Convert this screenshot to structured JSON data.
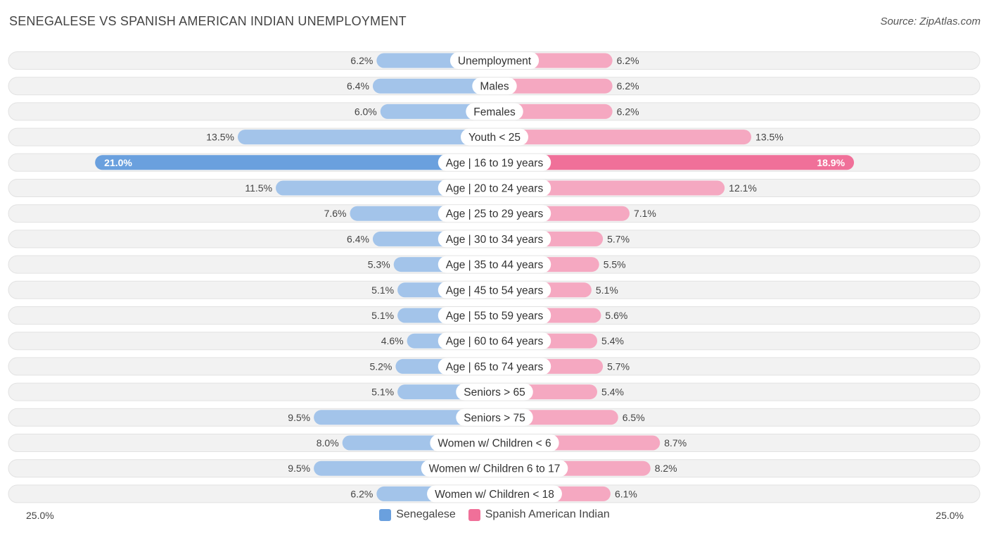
{
  "header": {
    "title": "SENEGALESE VS SPANISH AMERICAN INDIAN UNEMPLOYMENT",
    "source": "Source: ZipAtlas.com"
  },
  "colors": {
    "left_bar": "#a3c4ea",
    "left_bar_strong": "#6aa0de",
    "right_bar": "#f5a8c1",
    "right_bar_strong": "#f07099",
    "row_bg": "#f2f2f2",
    "legend_left": "#6aa0de",
    "legend_right": "#f07099"
  },
  "axis": {
    "left_label": "25.0%",
    "right_label": "25.0%"
  },
  "legend": {
    "left_label": "Senegalese",
    "right_label": "Spanish American Indian"
  },
  "chart_data": {
    "type": "bar",
    "orientation": "horizontal-diverging",
    "title": "SENEGALESE VS SPANISH AMERICAN INDIAN UNEMPLOYMENT",
    "xlim": [
      0,
      25
    ],
    "categories": [
      "Unemployment",
      "Males",
      "Females",
      "Youth < 25",
      "Age | 16 to 19 years",
      "Age | 20 to 24 years",
      "Age | 25 to 29 years",
      "Age | 30 to 34 years",
      "Age | 35 to 44 years",
      "Age | 45 to 54 years",
      "Age | 55 to 59 years",
      "Age | 60 to 64 years",
      "Age | 65 to 74 years",
      "Seniors > 65",
      "Seniors > 75",
      "Women w/ Children < 6",
      "Women w/ Children 6 to 17",
      "Women w/ Children < 18"
    ],
    "series": [
      {
        "name": "Senegalese",
        "values": [
          6.2,
          6.4,
          6.0,
          13.5,
          21.0,
          11.5,
          7.6,
          6.4,
          5.3,
          5.1,
          5.1,
          4.6,
          5.2,
          5.1,
          9.5,
          8.0,
          9.5,
          6.2
        ],
        "labels": [
          "6.2%",
          "6.4%",
          "6.0%",
          "13.5%",
          "21.0%",
          "11.5%",
          "7.6%",
          "6.4%",
          "5.3%",
          "5.1%",
          "5.1%",
          "4.6%",
          "5.2%",
          "5.1%",
          "9.5%",
          "8.0%",
          "9.5%",
          "6.2%"
        ]
      },
      {
        "name": "Spanish American Indian",
        "values": [
          6.2,
          6.2,
          6.2,
          13.5,
          18.9,
          12.1,
          7.1,
          5.7,
          5.5,
          5.1,
          5.6,
          5.4,
          5.7,
          5.4,
          6.5,
          8.7,
          8.2,
          6.1
        ],
        "labels": [
          "6.2%",
          "6.2%",
          "6.2%",
          "13.5%",
          "18.9%",
          "12.1%",
          "7.1%",
          "5.7%",
          "5.5%",
          "5.1%",
          "5.6%",
          "5.4%",
          "5.7%",
          "5.4%",
          "6.5%",
          "8.7%",
          "8.2%",
          "6.1%"
        ]
      }
    ],
    "highlight_index": 4
  }
}
